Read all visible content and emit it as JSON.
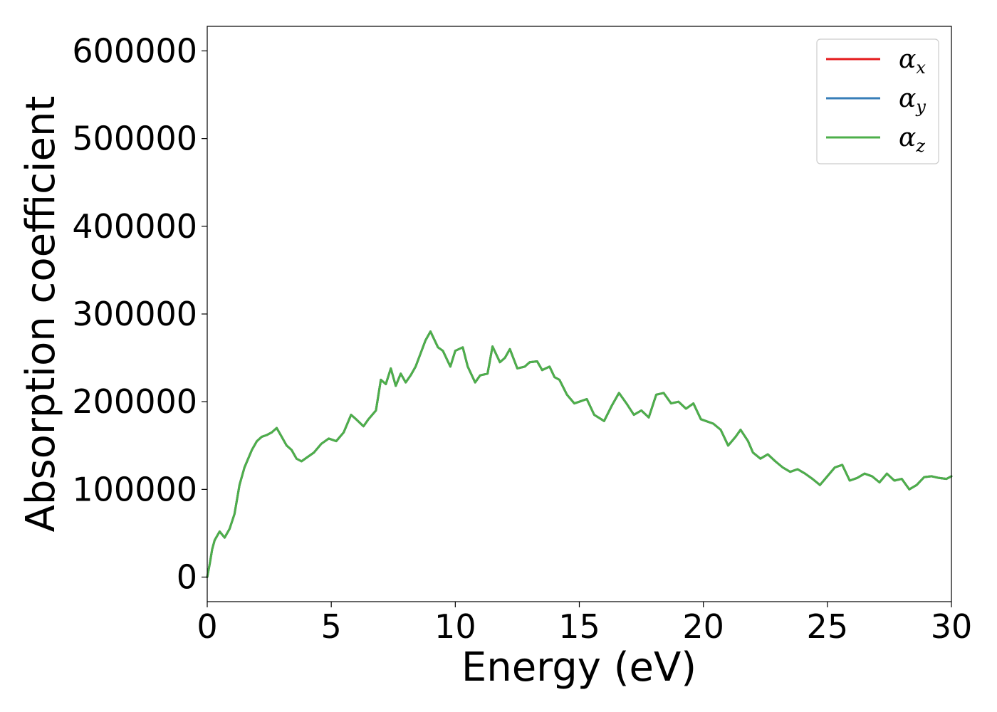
{
  "chart_data": {
    "type": "line",
    "xlabel": "Energy (eV)",
    "ylabel": "Absorption coefficient",
    "xlim": [
      0,
      30
    ],
    "ylim": [
      -28000,
      628000
    ],
    "x_ticks": [
      0,
      5,
      10,
      15,
      20,
      25,
      30
    ],
    "y_ticks": [
      0,
      100000,
      200000,
      300000,
      400000,
      500000,
      600000
    ],
    "grid": false,
    "legend_position": "top-right",
    "x": [
      0,
      0.1,
      0.2,
      0.3,
      0.5,
      0.7,
      0.9,
      1.1,
      1.3,
      1.5,
      1.8,
      2.0,
      2.2,
      2.4,
      2.6,
      2.8,
      3.0,
      3.2,
      3.4,
      3.6,
      3.8,
      4.0,
      4.3,
      4.6,
      4.9,
      5.2,
      5.5,
      5.8,
      6.0,
      6.3,
      6.5,
      6.8,
      7.0,
      7.2,
      7.4,
      7.6,
      7.8,
      8.0,
      8.2,
      8.4,
      8.6,
      8.8,
      9.0,
      9.3,
      9.5,
      9.8,
      10.0,
      10.3,
      10.5,
      10.8,
      11.0,
      11.3,
      11.5,
      11.8,
      12.0,
      12.2,
      12.5,
      12.8,
      13.0,
      13.3,
      13.5,
      13.8,
      14.0,
      14.2,
      14.5,
      14.8,
      15.0,
      15.3,
      15.6,
      16.0,
      16.3,
      16.6,
      16.9,
      17.2,
      17.5,
      17.8,
      18.1,
      18.4,
      18.7,
      19.0,
      19.3,
      19.6,
      19.9,
      20.1,
      20.4,
      20.7,
      21.0,
      21.3,
      21.5,
      21.8,
      22.0,
      22.3,
      22.6,
      22.9,
      23.2,
      23.5,
      23.8,
      24.1,
      24.4,
      24.7,
      25.0,
      25.3,
      25.6,
      25.9,
      26.2,
      26.5,
      26.8,
      27.1,
      27.4,
      27.7,
      28.0,
      28.3,
      28.6,
      28.9,
      29.2,
      29.5,
      29.8,
      30.0
    ],
    "series": [
      {
        "name": "αx",
        "name_main": "α",
        "name_sub": "x",
        "color": "#e41a1c",
        "values": [
          0,
          15000,
          32000,
          42000,
          52000,
          45000,
          55000,
          72000,
          105000,
          125000,
          145000,
          155000,
          160000,
          162000,
          165000,
          170000,
          160000,
          150000,
          145000,
          135000,
          132000,
          136000,
          142000,
          152000,
          158000,
          155000,
          165000,
          185000,
          180000,
          172000,
          180000,
          190000,
          225000,
          220000,
          238000,
          218000,
          232000,
          222000,
          230000,
          240000,
          255000,
          270000,
          280000,
          262000,
          258000,
          240000,
          258000,
          262000,
          240000,
          222000,
          230000,
          232000,
          263000,
          245000,
          250000,
          260000,
          238000,
          240000,
          245000,
          246000,
          236000,
          240000,
          228000,
          225000,
          208000,
          198000,
          200000,
          203000,
          185000,
          178000,
          195000,
          210000,
          198000,
          185000,
          190000,
          182000,
          208000,
          210000,
          198000,
          200000,
          192000,
          198000,
          180000,
          178000,
          175000,
          168000,
          150000,
          160000,
          168000,
          155000,
          142000,
          135000,
          140000,
          132000,
          125000,
          120000,
          123000,
          118000,
          112000,
          105000,
          115000,
          125000,
          128000,
          110000,
          113000,
          118000,
          115000,
          108000,
          118000,
          110000,
          112000,
          100000,
          105000,
          114000,
          115000,
          113000,
          112000,
          115000
        ]
      },
      {
        "name": "αy",
        "name_main": "α",
        "name_sub": "y",
        "color": "#377eb8",
        "values": [
          0,
          15000,
          32000,
          42000,
          52000,
          45000,
          55000,
          72000,
          105000,
          125000,
          145000,
          155000,
          160000,
          162000,
          165000,
          170000,
          160000,
          150000,
          145000,
          135000,
          132000,
          136000,
          142000,
          152000,
          158000,
          155000,
          165000,
          185000,
          180000,
          172000,
          180000,
          190000,
          225000,
          220000,
          238000,
          218000,
          232000,
          222000,
          230000,
          240000,
          255000,
          270000,
          280000,
          262000,
          258000,
          240000,
          258000,
          262000,
          240000,
          222000,
          230000,
          232000,
          263000,
          245000,
          250000,
          260000,
          238000,
          240000,
          245000,
          246000,
          236000,
          240000,
          228000,
          225000,
          208000,
          198000,
          200000,
          203000,
          185000,
          178000,
          195000,
          210000,
          198000,
          185000,
          190000,
          182000,
          208000,
          210000,
          198000,
          200000,
          192000,
          198000,
          180000,
          178000,
          175000,
          168000,
          150000,
          160000,
          168000,
          155000,
          142000,
          135000,
          140000,
          132000,
          125000,
          120000,
          123000,
          118000,
          112000,
          105000,
          115000,
          125000,
          128000,
          110000,
          113000,
          118000,
          115000,
          108000,
          118000,
          110000,
          112000,
          100000,
          105000,
          114000,
          115000,
          113000,
          112000,
          115000
        ]
      },
      {
        "name": "αz",
        "name_main": "α",
        "name_sub": "z",
        "color": "#4daf4a",
        "values": [
          0,
          15000,
          32000,
          42000,
          52000,
          45000,
          55000,
          72000,
          105000,
          125000,
          145000,
          155000,
          160000,
          162000,
          165000,
          170000,
          160000,
          150000,
          145000,
          135000,
          132000,
          136000,
          142000,
          152000,
          158000,
          155000,
          165000,
          185000,
          180000,
          172000,
          180000,
          190000,
          225000,
          220000,
          238000,
          218000,
          232000,
          222000,
          230000,
          240000,
          255000,
          270000,
          280000,
          262000,
          258000,
          240000,
          258000,
          262000,
          240000,
          222000,
          230000,
          232000,
          263000,
          245000,
          250000,
          260000,
          238000,
          240000,
          245000,
          246000,
          236000,
          240000,
          228000,
          225000,
          208000,
          198000,
          200000,
          203000,
          185000,
          178000,
          195000,
          210000,
          198000,
          185000,
          190000,
          182000,
          208000,
          210000,
          198000,
          200000,
          192000,
          198000,
          180000,
          178000,
          175000,
          168000,
          150000,
          160000,
          168000,
          155000,
          142000,
          135000,
          140000,
          132000,
          125000,
          120000,
          123000,
          118000,
          112000,
          105000,
          115000,
          125000,
          128000,
          110000,
          113000,
          118000,
          115000,
          108000,
          118000,
          110000,
          112000,
          100000,
          105000,
          114000,
          115000,
          113000,
          112000,
          115000
        ]
      }
    ]
  }
}
